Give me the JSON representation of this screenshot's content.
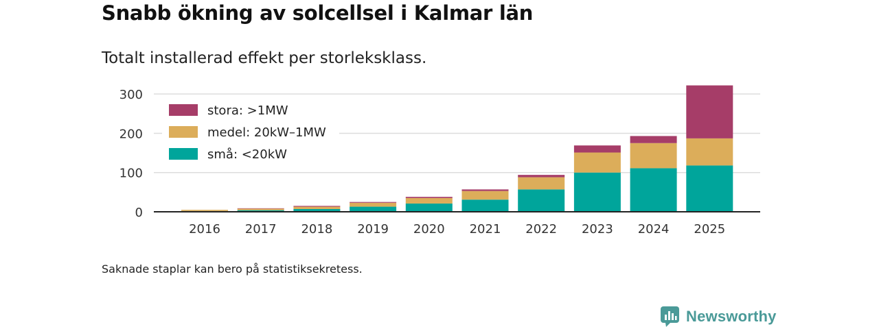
{
  "header": {
    "title": "Snabb ökning av solcellsel i Kalmar län",
    "subtitle": "Totalt installerad effekt per storleksklass."
  },
  "footer": {
    "note": "Saknade staplar kan bero på statistiksekretess.",
    "brand": "Newsworthy",
    "brand_icon": "bar-chart-logo-icon"
  },
  "colors": {
    "stora": "#a63d68",
    "medel": "#dcad5a",
    "sma": "#00a59b",
    "grid": "#dddddd",
    "axis": "#222222",
    "brand": "#4a9a98"
  },
  "chart_data": {
    "type": "bar",
    "stacked": true,
    "title": "Snabb ökning av solcellsel i Kalmar län",
    "subtitle": "Totalt installerad effekt per storleksklass.",
    "xlabel": "",
    "ylabel": "",
    "ylim": [
      0,
      330
    ],
    "yticks": [
      0,
      100,
      200,
      300
    ],
    "categories": [
      "2016",
      "2017",
      "2018",
      "2019",
      "2020",
      "2021",
      "2022",
      "2023",
      "2024",
      "2025"
    ],
    "series": [
      {
        "name": "små: <20kW",
        "key": "sma",
        "values": [
          2,
          4,
          7,
          13,
          21,
          31,
          57,
          100,
          111,
          118
        ]
      },
      {
        "name": "medel: 20kW–1MW",
        "key": "medel",
        "values": [
          3,
          4,
          6,
          10,
          14,
          22,
          31,
          51,
          64,
          69
        ]
      },
      {
        "name": "stora: >1MW",
        "key": "stora",
        "values": [
          0,
          1,
          2,
          2,
          3,
          4,
          6,
          18,
          18,
          135
        ]
      }
    ],
    "legend": {
      "position": "top-left",
      "order": [
        "stora: >1MW",
        "medel: 20kW–1MW",
        "små: <20kW"
      ]
    },
    "grid": true
  }
}
